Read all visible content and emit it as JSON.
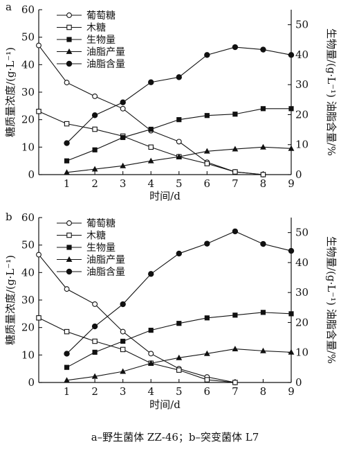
{
  "caption": "a–野生菌体 ZZ-46；b–突变菌体 L7",
  "chart_data": [
    {
      "panel_label": "a",
      "type": "line",
      "xlabel": "时间/d",
      "ylabel_left": "糖质量浓度/(g·L⁻¹)",
      "ylabel_right": "生物量/(g·L⁻¹) 油脂含量/%",
      "xlim": [
        0,
        9
      ],
      "ylim_left": [
        0,
        60
      ],
      "ylim_right": [
        0,
        55
      ],
      "x_ticks": [
        "1",
        "2",
        "3",
        "4",
        "5",
        "6",
        "7",
        "8",
        "9"
      ],
      "y_left_ticks": [
        "0",
        "10",
        "20",
        "30",
        "40",
        "50",
        "60"
      ],
      "y_right_ticks": [
        "0",
        "10",
        "20",
        "30",
        "40",
        "50"
      ],
      "legend": [
        "葡萄糖",
        "木糖",
        "生物量",
        "油脂产量",
        "油脂含量"
      ],
      "series": [
        {
          "name": "葡萄糖",
          "marker": "open-circle",
          "axis": "left",
          "x": [
            0,
            1,
            2,
            3,
            4,
            5,
            6,
            7,
            8
          ],
          "y": [
            47,
            33.5,
            28.5,
            24,
            16,
            12,
            4.5,
            1,
            0
          ]
        },
        {
          "name": "木糖",
          "marker": "open-square",
          "axis": "left",
          "x": [
            0,
            1,
            2,
            3,
            4,
            5,
            6,
            7,
            8
          ],
          "y": [
            23,
            18.5,
            16.5,
            14,
            10,
            6.5,
            4,
            1,
            0
          ]
        },
        {
          "name": "生物量",
          "marker": "filled-square",
          "axis": "left",
          "x": [
            1,
            2,
            3,
            4,
            5,
            6,
            7,
            8,
            9
          ],
          "y": [
            5,
            9,
            13.5,
            16.5,
            20,
            21.5,
            22,
            24,
            24
          ]
        },
        {
          "name": "油脂产量",
          "marker": "filled-triangle",
          "axis": "left",
          "x": [
            1,
            2,
            3,
            4,
            5,
            6,
            7,
            8,
            9
          ],
          "y": [
            0.8,
            2,
            3.2,
            5,
            6.5,
            8.5,
            9.3,
            10,
            9.5
          ]
        },
        {
          "name": "油脂含量",
          "marker": "filled-circle",
          "axis": "right",
          "x": [
            1,
            2,
            3,
            4,
            5,
            6,
            7,
            8,
            9
          ],
          "y": [
            10.5,
            19.8,
            24.1,
            30.8,
            32.5,
            39.9,
            42.5,
            41.7,
            39.9
          ]
        }
      ]
    },
    {
      "panel_label": "b",
      "type": "line",
      "xlabel": "时间/d",
      "ylabel_left": "糖质量浓度/(g·L⁻¹)",
      "ylabel_right": "生物量/(g·L⁻¹) 油脂含量/%",
      "xlim": [
        0,
        9
      ],
      "ylim_left": [
        0,
        60
      ],
      "ylim_right": [
        0,
        55
      ],
      "x_ticks": [
        "1",
        "2",
        "3",
        "4",
        "5",
        "6",
        "7",
        "8",
        "9"
      ],
      "y_left_ticks": [
        "0",
        "10",
        "20",
        "30",
        "40",
        "50",
        "60"
      ],
      "y_right_ticks": [
        "0",
        "10",
        "20",
        "30",
        "40",
        "50"
      ],
      "legend": [
        "葡萄糖",
        "木糖",
        "生物量",
        "油脂产量",
        "油脂含量"
      ],
      "series": [
        {
          "name": "葡萄糖",
          "marker": "open-circle",
          "axis": "left",
          "x": [
            0,
            1,
            2,
            3,
            4,
            5,
            6,
            7
          ],
          "y": [
            46.5,
            34,
            28.5,
            18.5,
            10.5,
            5,
            2,
            0
          ]
        },
        {
          "name": "木糖",
          "marker": "open-square",
          "axis": "left",
          "x": [
            0,
            1,
            2,
            3,
            4,
            5,
            6,
            7
          ],
          "y": [
            23.5,
            18.5,
            15,
            12,
            7,
            4.5,
            1,
            0
          ]
        },
        {
          "name": "生物量",
          "marker": "filled-square",
          "axis": "left",
          "x": [
            1,
            2,
            3,
            4,
            5,
            6,
            7,
            8,
            9
          ],
          "y": [
            5.5,
            11,
            15,
            19,
            21.5,
            23.5,
            24.5,
            25.5,
            25
          ]
        },
        {
          "name": "油脂产量",
          "marker": "filled-triangle",
          "axis": "left",
          "x": [
            1,
            2,
            3,
            4,
            5,
            6,
            7,
            8,
            9
          ],
          "y": [
            0.8,
            2.2,
            4,
            7,
            9,
            10.5,
            12.2,
            11.5,
            11
          ]
        },
        {
          "name": "油脂含量",
          "marker": "filled-circle",
          "axis": "right",
          "x": [
            1,
            2,
            3,
            4,
            5,
            6,
            7,
            8,
            9
          ],
          "y": [
            9.6,
            18.7,
            26.1,
            36.2,
            43,
            46.3,
            50.4,
            46.2,
            43.9
          ]
        }
      ]
    }
  ]
}
